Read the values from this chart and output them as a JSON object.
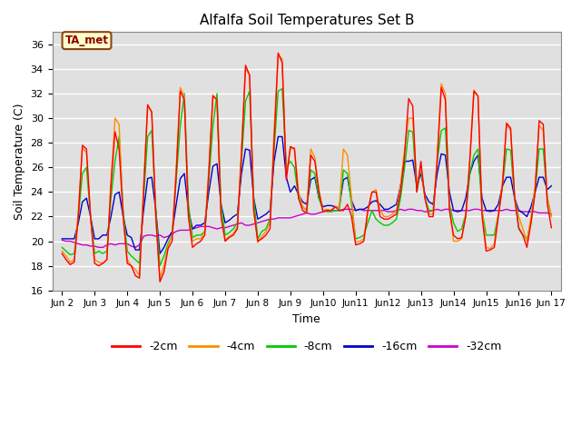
{
  "title": "Alfalfa Soil Temperatures Set B",
  "xlabel": "Time",
  "ylabel": "Soil Temperature (C)",
  "ylim": [
    16,
    37
  ],
  "yticks": [
    16,
    18,
    20,
    22,
    24,
    26,
    28,
    30,
    32,
    34,
    36
  ],
  "xtick_labels": [
    "Jun 2",
    "Jun 3",
    "Jun 4",
    "Jun 5",
    "Jun 6",
    "Jun 7",
    "Jun 8",
    "Jun 9",
    "Jun 10",
    "Jun 11",
    "Jun 12",
    "Jun 13",
    "Jun 14",
    "Jun 15",
    "Jun 16",
    "Jun 17"
  ],
  "xtick_labels_display": [
    "Jun 2",
    "Jun 3",
    "Jun 4",
    "Jun 5",
    "Jun 6",
    "Jun 7",
    "Jun 8",
    "Jun 9",
    "Jun10",
    "Jun11",
    "Jun12",
    "Jun13",
    "Jun14",
    "Jun15",
    "Jun16",
    "Jun 17"
  ],
  "legend_label": "TA_met",
  "annotation_box_color": "#FFFFCC",
  "annotation_text_color": "#8B0000",
  "background_color": "#E0E0E0",
  "plot_background": "#E0E0E0",
  "grid_color": "#FFFFFF",
  "colors": {
    "-2cm": "#FF0000",
    "-4cm": "#FF8C00",
    "-8cm": "#00CC00",
    "-16cm": "#0000CC",
    "-32cm": "#CC00CC"
  },
  "t": [
    0.0,
    0.125,
    0.25,
    0.375,
    0.5,
    0.625,
    0.75,
    0.875,
    1.0,
    1.125,
    1.25,
    1.375,
    1.5,
    1.625,
    1.75,
    1.875,
    2.0,
    2.125,
    2.25,
    2.375,
    2.5,
    2.625,
    2.75,
    2.875,
    3.0,
    3.125,
    3.25,
    3.375,
    3.5,
    3.625,
    3.75,
    3.875,
    4.0,
    4.125,
    4.25,
    4.375,
    4.5,
    4.625,
    4.75,
    4.875,
    5.0,
    5.125,
    5.25,
    5.375,
    5.5,
    5.625,
    5.75,
    5.875,
    6.0,
    6.125,
    6.25,
    6.375,
    6.5,
    6.625,
    6.75,
    6.875,
    7.0,
    7.125,
    7.25,
    7.375,
    7.5,
    7.625,
    7.75,
    7.875,
    8.0,
    8.125,
    8.25,
    8.375,
    8.5,
    8.625,
    8.75,
    8.875,
    9.0,
    9.125,
    9.25,
    9.375,
    9.5,
    9.625,
    9.75,
    9.875,
    10.0,
    10.125,
    10.25,
    10.375,
    10.5,
    10.625,
    10.75,
    10.875,
    11.0,
    11.125,
    11.25,
    11.375,
    11.5,
    11.625,
    11.75,
    11.875,
    12.0,
    12.125,
    12.25,
    12.375,
    12.5,
    12.625,
    12.75,
    12.875,
    13.0,
    13.125,
    13.25,
    13.375,
    13.5,
    13.625,
    13.75,
    13.875,
    14.0,
    14.125,
    14.25,
    14.375,
    14.5,
    14.625,
    14.75,
    14.875,
    15.0
  ],
  "d2cm": [
    19.0,
    18.5,
    18.1,
    18.3,
    22.0,
    27.8,
    27.5,
    22.0,
    18.2,
    18.0,
    18.2,
    18.5,
    24.5,
    28.9,
    27.5,
    22.0,
    18.2,
    18.0,
    17.2,
    17.0,
    24.0,
    31.1,
    30.5,
    22.0,
    16.7,
    17.5,
    19.4,
    20.0,
    25.5,
    32.2,
    31.5,
    22.0,
    19.5,
    19.8,
    20.0,
    20.5,
    25.5,
    31.8,
    31.5,
    22.0,
    20.0,
    20.3,
    20.5,
    21.0,
    27.0,
    34.3,
    33.5,
    22.5,
    20.0,
    20.2,
    20.5,
    21.0,
    28.0,
    35.3,
    34.5,
    25.0,
    27.7,
    27.5,
    23.5,
    22.5,
    22.3,
    27.0,
    26.5,
    24.0,
    22.4,
    22.5,
    22.5,
    22.8,
    22.5,
    22.5,
    23.0,
    22.0,
    19.7,
    19.8,
    20.0,
    22.5,
    24.0,
    24.0,
    22.0,
    21.8,
    21.8,
    22.0,
    22.2,
    24.0,
    27.0,
    31.6,
    31.0,
    24.0,
    26.5,
    23.5,
    22.0,
    22.0,
    26.5,
    32.5,
    31.5,
    22.5,
    20.5,
    20.2,
    20.3,
    22.0,
    26.5,
    32.2,
    31.8,
    22.0,
    19.2,
    19.3,
    19.5,
    22.0,
    24.5,
    29.6,
    29.2,
    23.5,
    21.1,
    20.5,
    19.5,
    21.5,
    24.0,
    29.8,
    29.5,
    23.0,
    21.1
  ],
  "d4cm": [
    19.2,
    18.8,
    18.3,
    18.5,
    22.5,
    27.6,
    27.2,
    22.0,
    18.5,
    18.3,
    18.2,
    18.5,
    25.0,
    30.0,
    29.5,
    22.0,
    18.5,
    18.0,
    17.7,
    17.2,
    24.5,
    31.0,
    30.5,
    22.0,
    17.0,
    18.0,
    19.6,
    20.5,
    26.0,
    32.5,
    31.8,
    22.0,
    20.0,
    20.2,
    20.2,
    20.8,
    26.0,
    31.9,
    31.5,
    22.0,
    20.1,
    20.4,
    20.6,
    21.2,
    27.5,
    34.0,
    33.5,
    22.5,
    19.9,
    20.4,
    20.8,
    21.5,
    29.0,
    35.2,
    34.8,
    25.5,
    27.5,
    27.6,
    24.0,
    22.8,
    22.5,
    27.5,
    26.8,
    24.2,
    22.5,
    22.6,
    22.5,
    22.8,
    22.8,
    27.5,
    27.0,
    23.5,
    19.9,
    20.0,
    20.2,
    22.5,
    24.0,
    24.2,
    22.5,
    22.0,
    22.0,
    22.2,
    22.5,
    24.5,
    27.5,
    30.0,
    30.0,
    24.5,
    26.0,
    23.5,
    22.2,
    22.2,
    27.0,
    32.8,
    32.0,
    22.8,
    20.0,
    20.0,
    20.2,
    22.2,
    26.8,
    32.3,
    31.8,
    22.5,
    19.5,
    19.4,
    19.8,
    22.2,
    24.8,
    29.5,
    29.0,
    23.5,
    22.0,
    21.0,
    20.0,
    22.0,
    24.5,
    29.4,
    29.0,
    23.5,
    22.0
  ],
  "d8cm": [
    19.5,
    19.2,
    18.9,
    19.0,
    22.0,
    25.5,
    26.0,
    22.0,
    19.0,
    19.2,
    19.0,
    19.2,
    23.5,
    26.5,
    28.5,
    22.5,
    19.2,
    18.8,
    18.5,
    18.2,
    23.5,
    28.5,
    29.0,
    22.5,
    18.0,
    18.8,
    19.8,
    20.5,
    25.0,
    29.4,
    32.0,
    23.0,
    20.3,
    20.5,
    20.5,
    20.8,
    25.0,
    29.3,
    32.0,
    23.0,
    20.5,
    20.7,
    21.0,
    21.5,
    26.5,
    31.4,
    32.2,
    23.5,
    20.2,
    20.8,
    21.0,
    21.8,
    27.5,
    32.2,
    32.4,
    26.0,
    26.5,
    26.0,
    23.5,
    22.8,
    22.5,
    25.8,
    25.5,
    23.5,
    22.5,
    22.4,
    22.4,
    22.5,
    22.5,
    25.8,
    25.5,
    23.0,
    20.2,
    20.3,
    20.5,
    21.5,
    22.5,
    21.8,
    21.5,
    21.3,
    21.3,
    21.5,
    21.8,
    23.5,
    26.0,
    29.0,
    28.9,
    24.0,
    26.0,
    23.5,
    22.5,
    22.5,
    26.5,
    29.0,
    29.2,
    23.0,
    21.5,
    20.8,
    21.0,
    22.2,
    25.5,
    27.0,
    27.5,
    22.5,
    20.5,
    20.5,
    20.5,
    22.2,
    24.5,
    27.5,
    27.4,
    23.5,
    21.0,
    20.5,
    20.2,
    21.5,
    24.0,
    27.5,
    27.5,
    23.5,
    22.0
  ],
  "d16cm": [
    20.2,
    20.2,
    20.2,
    20.2,
    21.5,
    23.2,
    23.5,
    22.0,
    20.2,
    20.2,
    20.5,
    20.5,
    22.0,
    23.8,
    24.0,
    22.0,
    20.5,
    20.3,
    19.3,
    19.3,
    22.5,
    25.1,
    25.2,
    22.5,
    19.0,
    19.5,
    20.2,
    20.8,
    23.0,
    25.1,
    25.5,
    22.5,
    21.0,
    21.3,
    21.3,
    21.5,
    24.0,
    26.1,
    26.3,
    23.0,
    21.5,
    21.7,
    22.0,
    22.2,
    25.5,
    27.5,
    27.4,
    23.5,
    21.8,
    22.0,
    22.2,
    22.5,
    26.5,
    28.5,
    28.5,
    25.2,
    24.0,
    24.5,
    23.8,
    23.2,
    23.0,
    25.0,
    25.2,
    23.5,
    22.8,
    22.9,
    22.9,
    22.8,
    22.8,
    25.0,
    25.2,
    23.3,
    22.5,
    22.6,
    22.6,
    22.8,
    23.2,
    23.3,
    23.0,
    22.6,
    22.6,
    22.8,
    23.0,
    24.5,
    26.5,
    26.5,
    26.6,
    24.5,
    25.5,
    23.8,
    23.2,
    23.0,
    25.5,
    27.1,
    27.0,
    24.0,
    22.5,
    22.4,
    22.5,
    23.5,
    25.5,
    26.5,
    27.0,
    23.5,
    22.5,
    22.5,
    22.5,
    23.0,
    24.5,
    25.2,
    25.2,
    23.5,
    22.5,
    22.3,
    22.0,
    22.8,
    24.0,
    25.2,
    25.2,
    24.2,
    24.5
  ],
  "d32cm": [
    20.1,
    20.0,
    20.0,
    19.9,
    19.8,
    19.7,
    19.7,
    19.6,
    19.6,
    19.5,
    19.5,
    19.7,
    19.8,
    19.7,
    19.8,
    19.8,
    19.8,
    19.6,
    19.5,
    19.7,
    20.4,
    20.5,
    20.5,
    20.4,
    20.5,
    20.3,
    20.4,
    20.6,
    20.8,
    20.9,
    20.9,
    20.9,
    21.0,
    21.1,
    21.2,
    21.2,
    21.2,
    21.1,
    21.0,
    21.1,
    21.1,
    21.2,
    21.3,
    21.4,
    21.5,
    21.3,
    21.3,
    21.4,
    21.5,
    21.6,
    21.7,
    21.8,
    21.8,
    21.9,
    21.9,
    21.9,
    21.9,
    22.0,
    22.1,
    22.2,
    22.3,
    22.2,
    22.2,
    22.3,
    22.4,
    22.5,
    22.5,
    22.5,
    22.5,
    22.6,
    22.6,
    22.6,
    22.5,
    22.6,
    22.5,
    22.5,
    22.5,
    22.5,
    22.5,
    22.5,
    22.4,
    22.4,
    22.5,
    22.6,
    22.5,
    22.6,
    22.6,
    22.5,
    22.5,
    22.4,
    22.4,
    22.5,
    22.6,
    22.5,
    22.6,
    22.6,
    22.5,
    22.5,
    22.5,
    22.5,
    22.5,
    22.6,
    22.6,
    22.5,
    22.5,
    22.4,
    22.5,
    22.5,
    22.5,
    22.6,
    22.5,
    22.5,
    22.5,
    22.4,
    22.4,
    22.4,
    22.4,
    22.3,
    22.3,
    22.3,
    22.2
  ]
}
